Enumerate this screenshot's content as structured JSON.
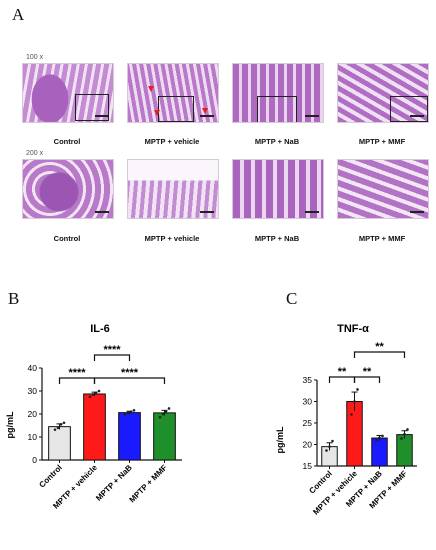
{
  "panel_labels": {
    "a": "A",
    "b": "B",
    "c": "C"
  },
  "histology": {
    "row1_magnification": "100 x",
    "row2_magnification": "200 x",
    "groups": [
      "Control",
      "MPTP + vehicle",
      "MPTP + NaB",
      "MPTP + MMF"
    ]
  },
  "colors": {
    "control": "#e6e6e6",
    "vehicle": "#ff1a1a",
    "nab": "#1a1aff",
    "mmf": "#1e8f2a",
    "tissue": "#b977c8",
    "tissue_light": "#e9d2ee"
  },
  "chart_data": [
    {
      "type": "bar",
      "title": "IL-6",
      "ylabel": "pg/mL",
      "categories": [
        "Control",
        "MPTP + vehicle",
        "MPTP + NaB",
        "MPTP + MMF"
      ],
      "values": [
        14.5,
        28.7,
        20.6,
        20.5
      ],
      "errors": [
        1.2,
        0.8,
        0.6,
        1.1
      ],
      "points": [
        [
          13.2,
          14.0,
          15.5,
          16.2
        ],
        [
          27.5,
          28.5,
          29.2,
          30.0
        ],
        [
          19.8,
          20.5,
          21.0,
          21.6
        ],
        [
          18.6,
          20.0,
          21.2,
          22.4
        ]
      ],
      "ylim": [
        0,
        40
      ],
      "yticks": [
        0,
        10,
        20,
        30,
        40
      ],
      "significance": [
        {
          "from": 1,
          "to": 2,
          "label": "****",
          "level": 1
        },
        {
          "from": 0,
          "to": 1,
          "label": "****",
          "level": 1
        },
        {
          "from": 1,
          "to": 3,
          "label": "****",
          "level": 1
        }
      ]
    },
    {
      "type": "bar",
      "title": "TNF-α",
      "ylabel": "pg/mL",
      "categories": [
        "Control",
        "MPTP + vehicle",
        "MPTP + NaB",
        "MPTP + MMF"
      ],
      "values": [
        19.5,
        30.0,
        21.5,
        22.3
      ],
      "errors": [
        0.9,
        2.2,
        0.6,
        0.9
      ],
      "points": [
        [
          18.6,
          19.5,
          20.8
        ],
        [
          27.0,
          30.0,
          32.8
        ],
        [
          21.0,
          21.6,
          22.0
        ],
        [
          21.4,
          22.4,
          23.5
        ]
      ],
      "ylim": [
        15,
        35
      ],
      "yticks": [
        15,
        20,
        25,
        30,
        35
      ],
      "significance": [
        {
          "from": 0,
          "to": 1,
          "label": "**",
          "level": 1
        },
        {
          "from": 1,
          "to": 2,
          "label": "**",
          "level": 1
        },
        {
          "from": 1,
          "to": 3,
          "label": "**",
          "level": 2
        }
      ]
    }
  ]
}
